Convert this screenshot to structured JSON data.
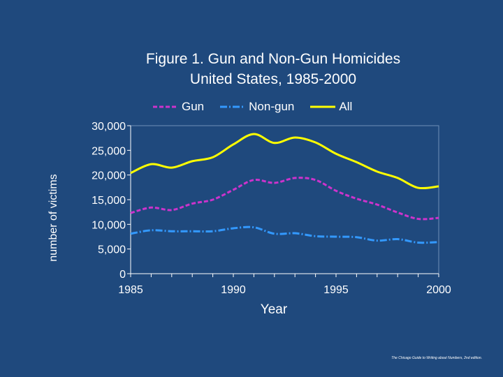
{
  "chart_data": {
    "type": "line",
    "title_line1": "Figure 1. Gun and Non-Gun Homicides",
    "title_line2": "United States, 1985-2000",
    "xlabel": "Year",
    "ylabel": "number of victims",
    "xlim": [
      1985,
      2000
    ],
    "ylim": [
      0,
      30000
    ],
    "x_ticks": [
      1985,
      1990,
      1995,
      2000
    ],
    "y_ticks": [
      0,
      5000,
      10000,
      15000,
      20000,
      25000,
      30000
    ],
    "y_tick_labels": [
      "0",
      "5,000",
      "10,000",
      "15,000",
      "20,000",
      "25,000",
      "30,000"
    ],
    "x": [
      1985,
      1986,
      1987,
      1988,
      1989,
      1990,
      1991,
      1992,
      1993,
      1994,
      1995,
      1996,
      1997,
      1998,
      1999,
      2000
    ],
    "series": [
      {
        "name": "Gun",
        "color": "#cc33cc",
        "style": "dashed",
        "values": [
          12300,
          13400,
          12900,
          14200,
          15000,
          17000,
          19000,
          18400,
          19400,
          19000,
          16800,
          15200,
          14000,
          12400,
          11100,
          11300
        ]
      },
      {
        "name": "Non-gun",
        "color": "#3399ff",
        "style": "dashdot",
        "values": [
          8100,
          8800,
          8600,
          8600,
          8600,
          9200,
          9400,
          8100,
          8200,
          7600,
          7500,
          7400,
          6700,
          7000,
          6300,
          6400
        ]
      },
      {
        "name": "All",
        "color": "#ffff00",
        "style": "solid",
        "values": [
          20400,
          22200,
          21500,
          22800,
          23600,
          26200,
          28300,
          26500,
          27600,
          26600,
          24300,
          22600,
          20700,
          19400,
          17400,
          17700
        ]
      }
    ],
    "legend_position": "top"
  },
  "footnote": "The Chicago Guide to Writing about Numbers, 2nd edition."
}
